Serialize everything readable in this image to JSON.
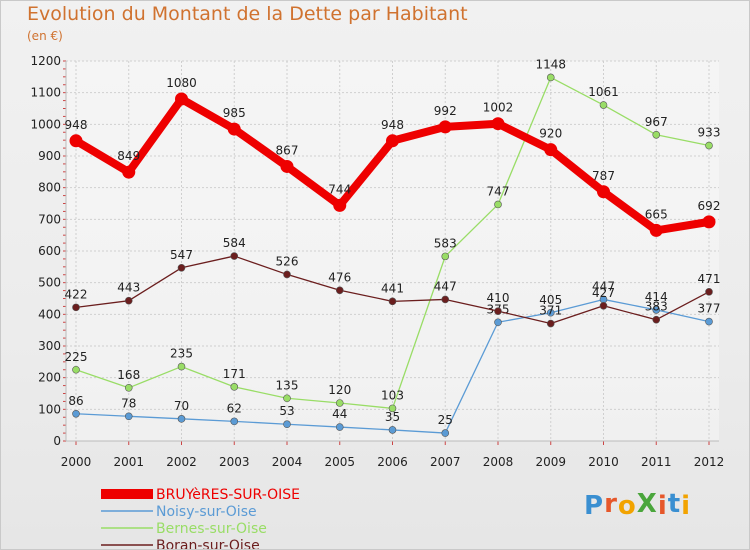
{
  "header": {
    "title": "Evolution du Montant de la Dette par Habitant",
    "subtitle": "(en €)"
  },
  "brand": {
    "text": "ProXiti",
    "letters": [
      "P",
      "r",
      "o",
      "X",
      "i",
      "t",
      "i"
    ],
    "colors": [
      "#3a8fd1",
      "#e6572a",
      "#f2a300",
      "#4aa63c",
      "#e6572a",
      "#3a8fd1",
      "#f2a300"
    ]
  },
  "chart_data": {
    "type": "line",
    "title": "Evolution du Montant de la Dette par Habitant",
    "subtitle": "(en €)",
    "xlabel": "",
    "ylabel": "",
    "x": [
      "2000",
      "2001",
      "2002",
      "2003",
      "2004",
      "2005",
      "2006",
      "2007",
      "2008",
      "2009",
      "2010",
      "2011",
      "2012"
    ],
    "ylim": [
      0,
      1200
    ],
    "yticks": [
      0,
      100,
      200,
      300,
      400,
      500,
      600,
      700,
      800,
      900,
      1000,
      1100,
      1200
    ],
    "grid": true,
    "legend_position": "bottom-left",
    "series": [
      {
        "name": "BRUYèRES-SUR-OISE",
        "color": "#ee0000",
        "values": [
          948,
          849,
          1080,
          985,
          867,
          744,
          948,
          992,
          1002,
          920,
          787,
          665,
          692
        ],
        "emphasis": true
      },
      {
        "name": "Noisy-sur-Oise",
        "color": "#5b9bd5",
        "values": [
          86,
          78,
          70,
          62,
          53,
          44,
          35,
          25,
          375,
          405,
          447,
          414,
          377
        ]
      },
      {
        "name": "Bernes-sur-Oise",
        "color": "#99dd66",
        "values": [
          225,
          168,
          235,
          171,
          135,
          120,
          103,
          583,
          747,
          1148,
          1061,
          967,
          933
        ]
      },
      {
        "name": "Boran-sur-Oise",
        "color": "#6b1e1e",
        "values": [
          422,
          443,
          547,
          584,
          526,
          476,
          441,
          447,
          410,
          371,
          427,
          383,
          471
        ]
      }
    ]
  }
}
